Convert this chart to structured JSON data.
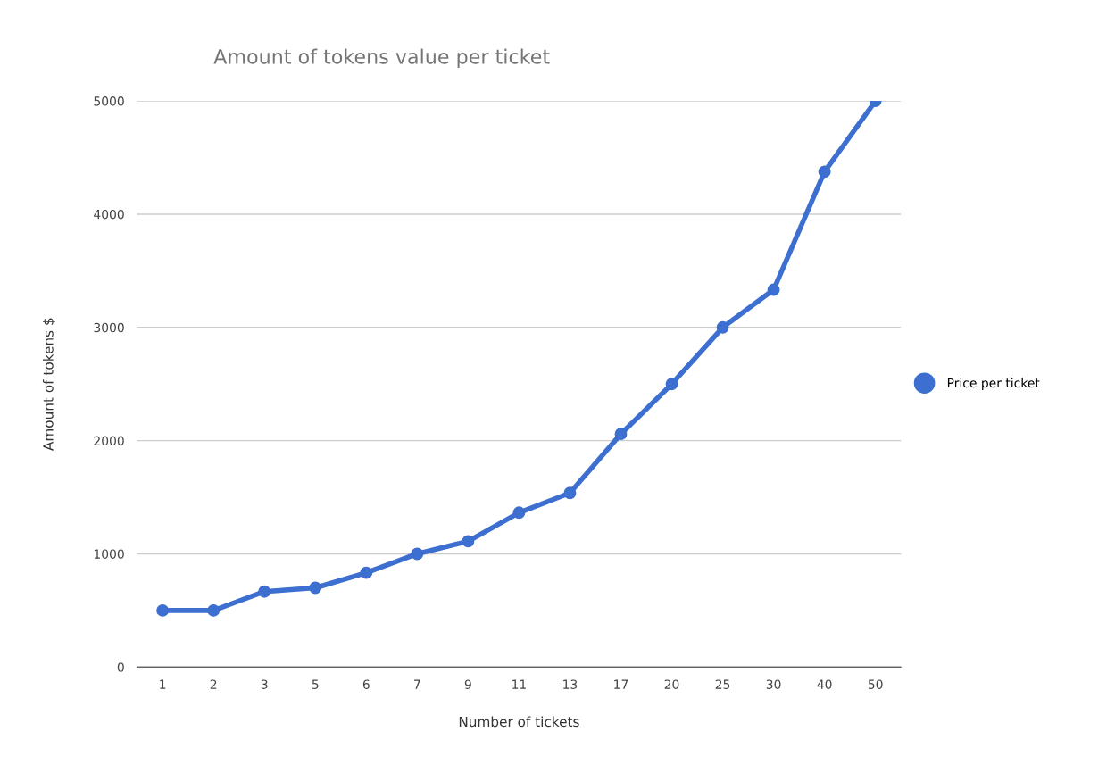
{
  "chart_data": {
    "type": "line",
    "title": "Amount of tokens value per ticket",
    "xlabel": "Number of tickets",
    "ylabel": "Amount of tokens $",
    "categories": [
      "1",
      "2",
      "3",
      "5",
      "6",
      "7",
      "9",
      "11",
      "13",
      "17",
      "20",
      "25",
      "30",
      "40",
      "50"
    ],
    "series": [
      {
        "name": "Price per ticket",
        "color": "#3c6fcf",
        "values": [
          500,
          500,
          667,
          700,
          833,
          1000,
          1111,
          1364,
          1538,
          2059,
          2500,
          3000,
          3333,
          4375,
          5000
        ]
      }
    ],
    "ylim": [
      0,
      5000
    ],
    "yticks": [
      0,
      1000,
      2000,
      3000,
      4000,
      5000
    ],
    "grid": "y",
    "legend": "right",
    "marker": "circle",
    "line_style": "solid"
  }
}
